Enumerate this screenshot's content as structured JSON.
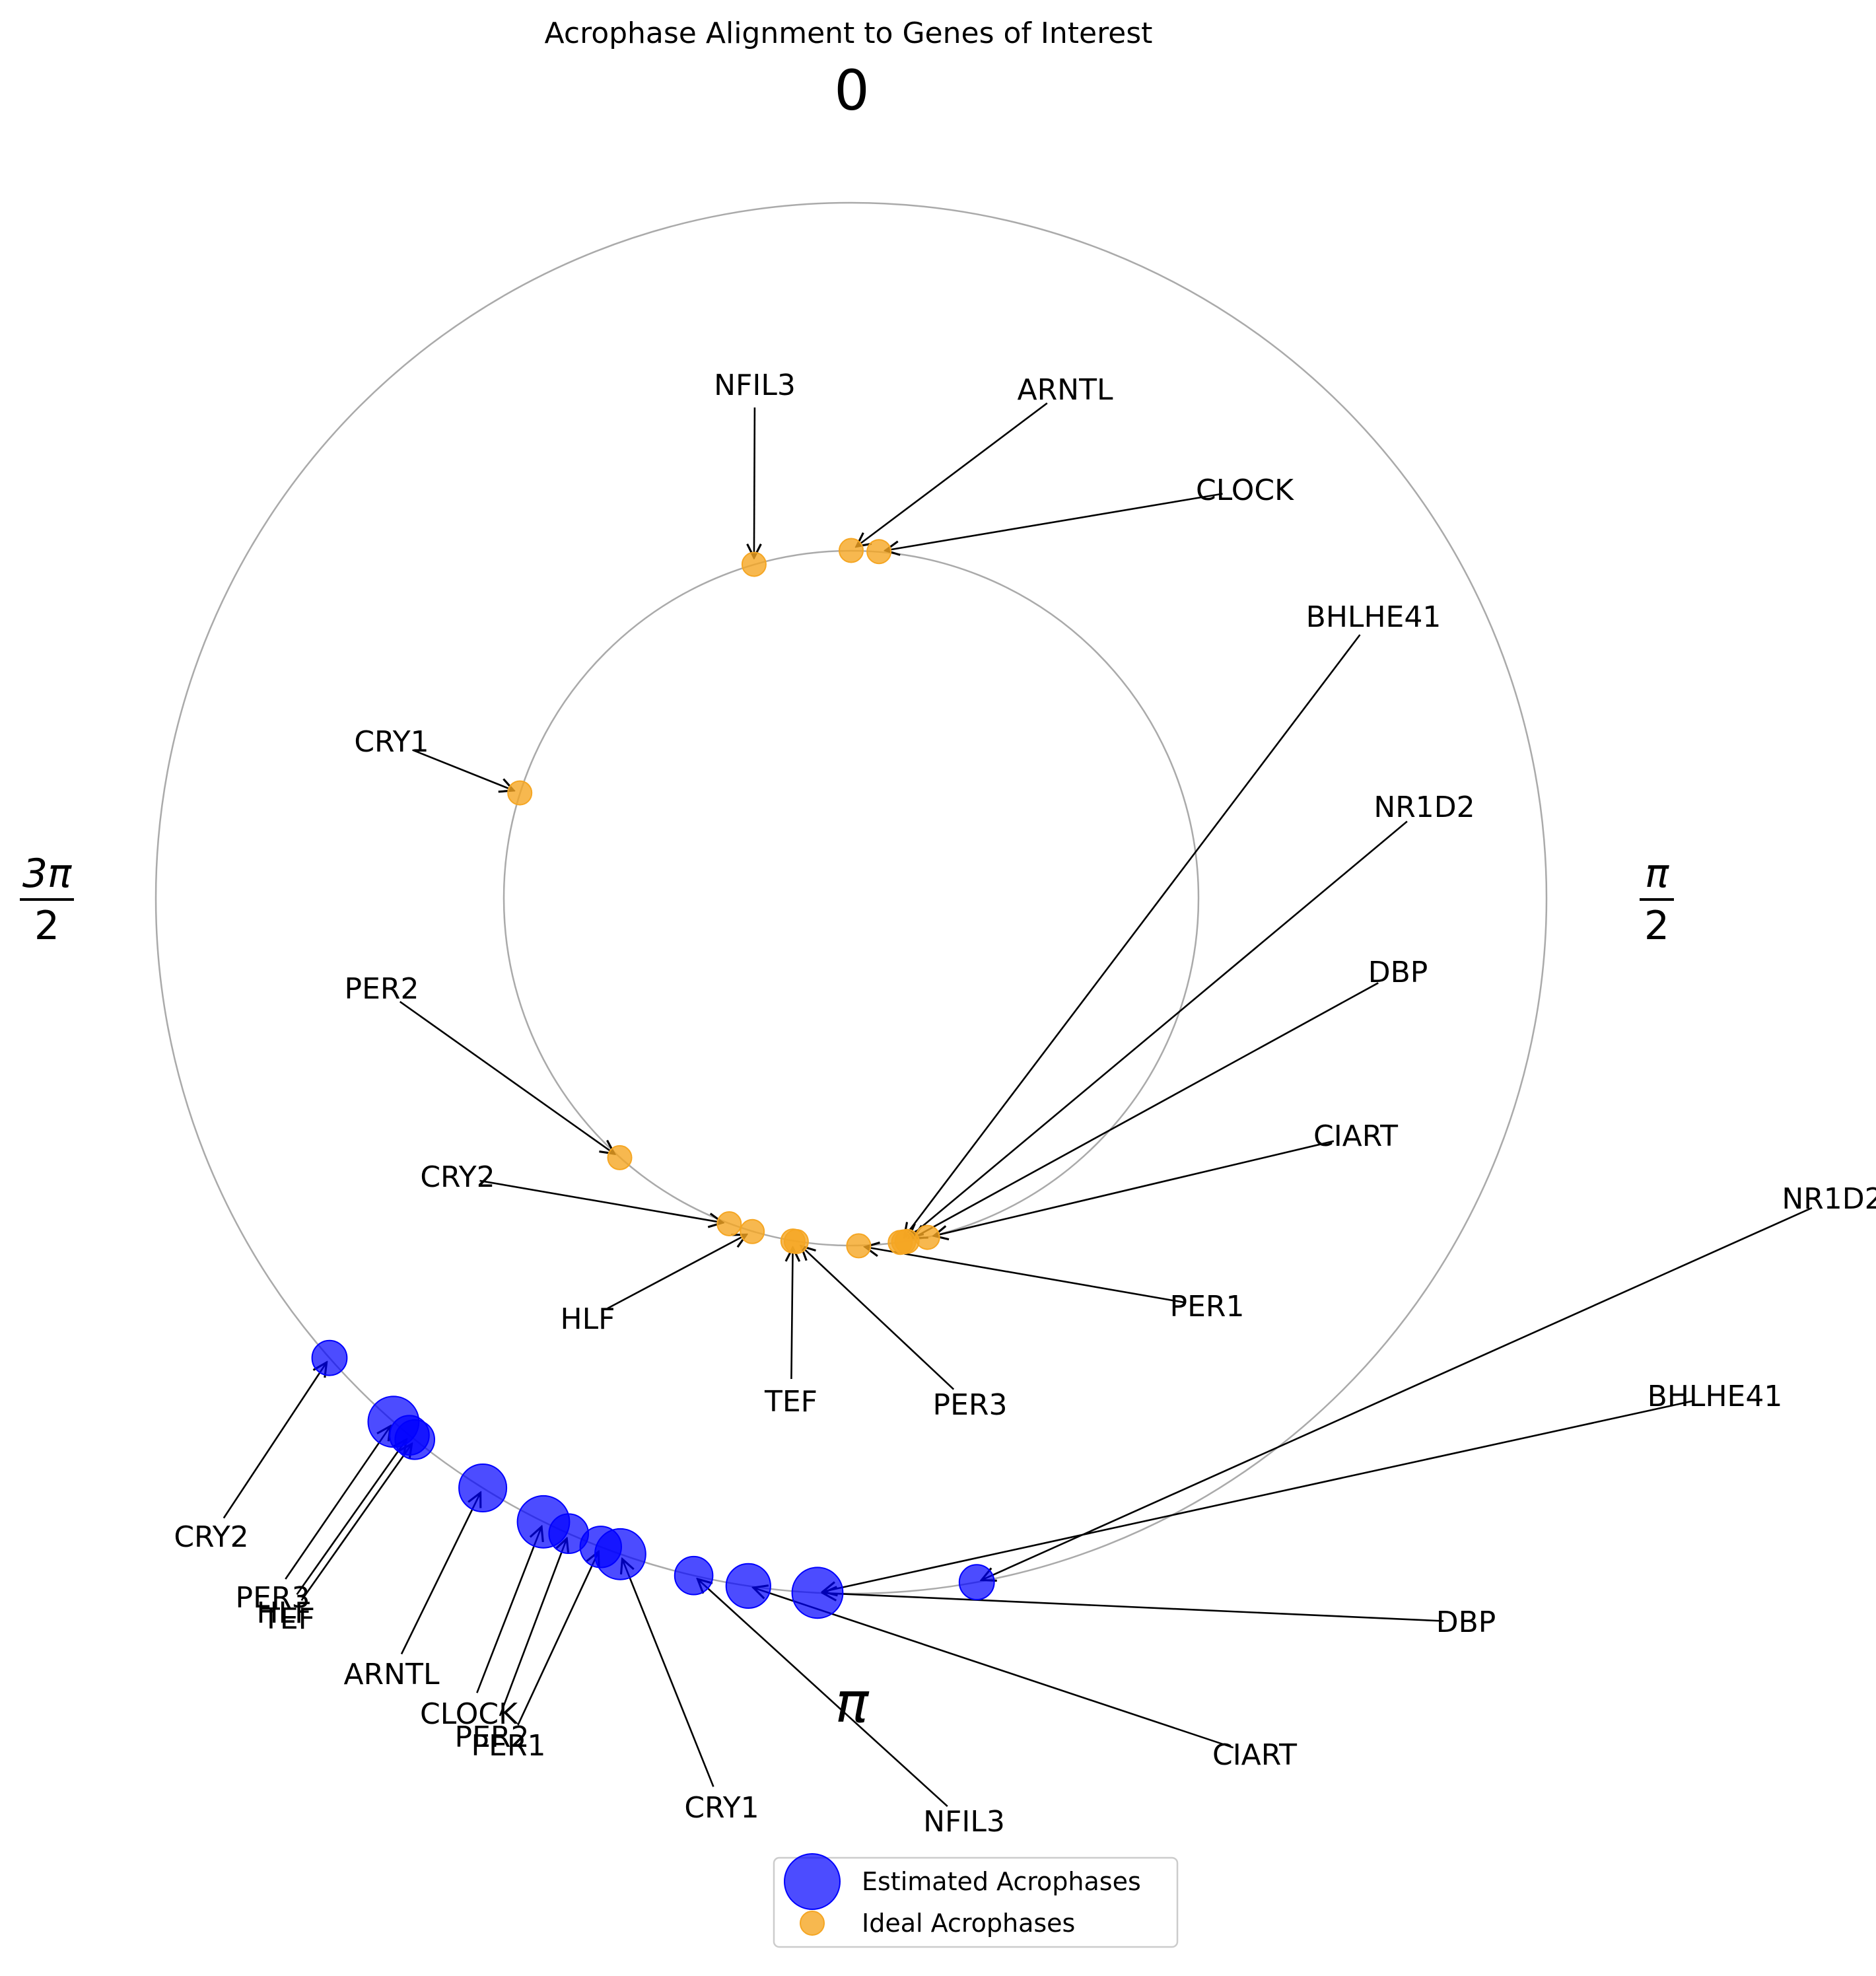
{
  "chart_data": {
    "type": "scatter",
    "subtype": "polar",
    "title": "Acrophase Alignment to Genes of Interest",
    "theta_direction": "clockwise",
    "theta_zero": "top",
    "angle_labels": {
      "top": "0",
      "right": {
        "num": "π",
        "den": "2"
      },
      "bottom": "π",
      "left": {
        "num": "3π",
        "den": "2"
      }
    },
    "colors": {
      "estimated": "#0000ff",
      "ideal": "#f5a623",
      "circle": "#aaaaaa"
    },
    "grid": false,
    "legend": {
      "placement": "bottom-center",
      "items": [
        {
          "label": "Estimated Acrophases",
          "series": "estimated"
        },
        {
          "label": "Ideal Acrophases",
          "series": "ideal"
        }
      ]
    },
    "series": [
      {
        "name": "Ideal Acrophases",
        "key": "ideal",
        "radius": 0.5,
        "points": [
          {
            "gene": "NFIL3",
            "phase": 6.0
          },
          {
            "gene": "ARNTL",
            "phase": 0.0
          },
          {
            "gene": "CLOCK",
            "phase": 0.08
          },
          {
            "gene": "CRY1",
            "phase": 5.02
          },
          {
            "gene": "PER2",
            "phase": 3.87
          },
          {
            "gene": "CRY2",
            "phase": 3.5
          },
          {
            "gene": "HLF",
            "phase": 3.43
          },
          {
            "gene": "TEF",
            "phase": 3.31
          },
          {
            "gene": "PER3",
            "phase": 3.3
          },
          {
            "gene": "PER1",
            "phase": 3.12
          },
          {
            "gene": "BHLHE41",
            "phase": 3.0
          },
          {
            "gene": "NR1D2",
            "phase": 2.99
          },
          {
            "gene": "DBP",
            "phase": 2.98
          },
          {
            "gene": "CIART",
            "phase": 2.92
          }
        ]
      },
      {
        "name": "Estimated Acrophases",
        "key": "estimated",
        "radius": 1.0,
        "points": [
          {
            "gene": "CRY2",
            "phase": 3.99,
            "size": 0.55
          },
          {
            "gene": "PER3",
            "phase": 3.86,
            "size": 0.8
          },
          {
            "gene": "HLF",
            "phase": 3.83,
            "size": 0.62
          },
          {
            "gene": "TEF",
            "phase": 3.82,
            "size": 0.62
          },
          {
            "gene": "ARNTL",
            "phase": 3.7,
            "size": 0.75
          },
          {
            "gene": "CLOCK",
            "phase": 3.6,
            "size": 0.82
          },
          {
            "gene": "PER2",
            "phase": 3.56,
            "size": 0.62
          },
          {
            "gene": "PER1",
            "phase": 3.51,
            "size": 0.65
          },
          {
            "gene": "CRY1",
            "phase": 3.48,
            "size": 0.8
          },
          {
            "gene": "NFIL3",
            "phase": 3.37,
            "size": 0.6
          },
          {
            "gene": "CIART",
            "phase": 3.29,
            "size": 0.7
          },
          {
            "gene": "DBP",
            "phase": 3.19,
            "size": 0.8
          },
          {
            "gene": "BHLHE41",
            "phase": 3.19,
            "size": 0.0
          },
          {
            "gene": "NR1D2",
            "phase": 2.96,
            "size": 0.55
          }
        ]
      }
    ],
    "annotations": [
      {
        "series": "ideal",
        "gene": "NFIL3",
        "text": "NFIL3",
        "text_at": [
          1143,
          583
        ]
      },
      {
        "series": "ideal",
        "gene": "ARNTL",
        "text": "ARNTL",
        "text_at": [
          1613,
          590
        ]
      },
      {
        "series": "ideal",
        "gene": "CLOCK",
        "text": "CLOCK",
        "text_at": [
          1885,
          742
        ]
      },
      {
        "series": "ideal",
        "gene": "BHLHE41",
        "text": "BHLHE41",
        "text_at": [
          2080,
          934
        ]
      },
      {
        "series": "ideal",
        "gene": "NR1D2",
        "text": "NR1D2",
        "text_at": [
          2157,
          1222
        ]
      },
      {
        "series": "ideal",
        "gene": "DBP",
        "text": "DBP",
        "text_at": [
          2117,
          1472
        ]
      },
      {
        "series": "ideal",
        "gene": "CIART",
        "text": "CIART",
        "text_at": [
          2053,
          1720
        ]
      },
      {
        "series": "ideal",
        "gene": "PER1",
        "text": "PER1",
        "text_at": [
          1828,
          1978
        ]
      },
      {
        "series": "ideal",
        "gene": "PER3",
        "text": "PER3",
        "text_at": [
          1469,
          2127
        ]
      },
      {
        "series": "ideal",
        "gene": "TEF",
        "text": "TEF",
        "text_at": [
          1198,
          2122
        ]
      },
      {
        "series": "ideal",
        "gene": "HLF",
        "text": "HLF",
        "text_at": [
          890,
          1997
        ]
      },
      {
        "series": "ideal",
        "gene": "CRY2",
        "text": "CRY2",
        "text_at": [
          693,
          1782
        ]
      },
      {
        "series": "ideal",
        "gene": "PER2",
        "text": "PER2",
        "text_at": [
          578,
          1497
        ]
      },
      {
        "series": "ideal",
        "gene": "CRY1",
        "text": "CRY1",
        "text_at": [
          593,
          1123
        ]
      },
      {
        "series": "estimated",
        "gene": "NR1D2",
        "text": "NR1D2",
        "text_at": [
          2775,
          1815
        ]
      },
      {
        "series": "estimated",
        "gene": "BHLHE41",
        "text": "BHLHE41",
        "text_at": [
          2597,
          2114
        ]
      },
      {
        "series": "estimated",
        "gene": "DBP",
        "text": "DBP",
        "text_at": [
          2220,
          2456
        ]
      },
      {
        "series": "estimated",
        "gene": "CIART",
        "text": "CIART",
        "text_at": [
          1900,
          2657
        ]
      },
      {
        "series": "estimated",
        "gene": "NFIL3",
        "text": "NFIL3",
        "text_at": [
          1460,
          2758
        ]
      },
      {
        "series": "estimated",
        "gene": "CRY1",
        "text": "CRY1",
        "text_at": [
          1093,
          2737
        ]
      },
      {
        "series": "estimated",
        "gene": "PER1",
        "text": "PER1",
        "text_at": [
          770,
          2643
        ]
      },
      {
        "series": "estimated",
        "gene": "PER2",
        "text": "PER2",
        "text_at": [
          745,
          2630
        ]
      },
      {
        "series": "estimated",
        "gene": "CLOCK",
        "text": "CLOCK",
        "text_at": [
          710,
          2595
        ]
      },
      {
        "series": "estimated",
        "gene": "ARNTL",
        "text": "ARNTL",
        "text_at": [
          593,
          2535
        ]
      },
      {
        "series": "estimated",
        "gene": "TEF",
        "text": "TEF",
        "text_at": [
          437,
          2451
        ]
      },
      {
        "series": "estimated",
        "gene": "HLF",
        "text": "HLF",
        "text_at": [
          430,
          2442
        ]
      },
      {
        "series": "estimated",
        "gene": "PER3",
        "text": "PER3",
        "text_at": [
          413,
          2419
        ]
      },
      {
        "series": "estimated",
        "gene": "CRY2",
        "text": "CRY2",
        "text_at": [
          320,
          2327
        ]
      }
    ]
  }
}
